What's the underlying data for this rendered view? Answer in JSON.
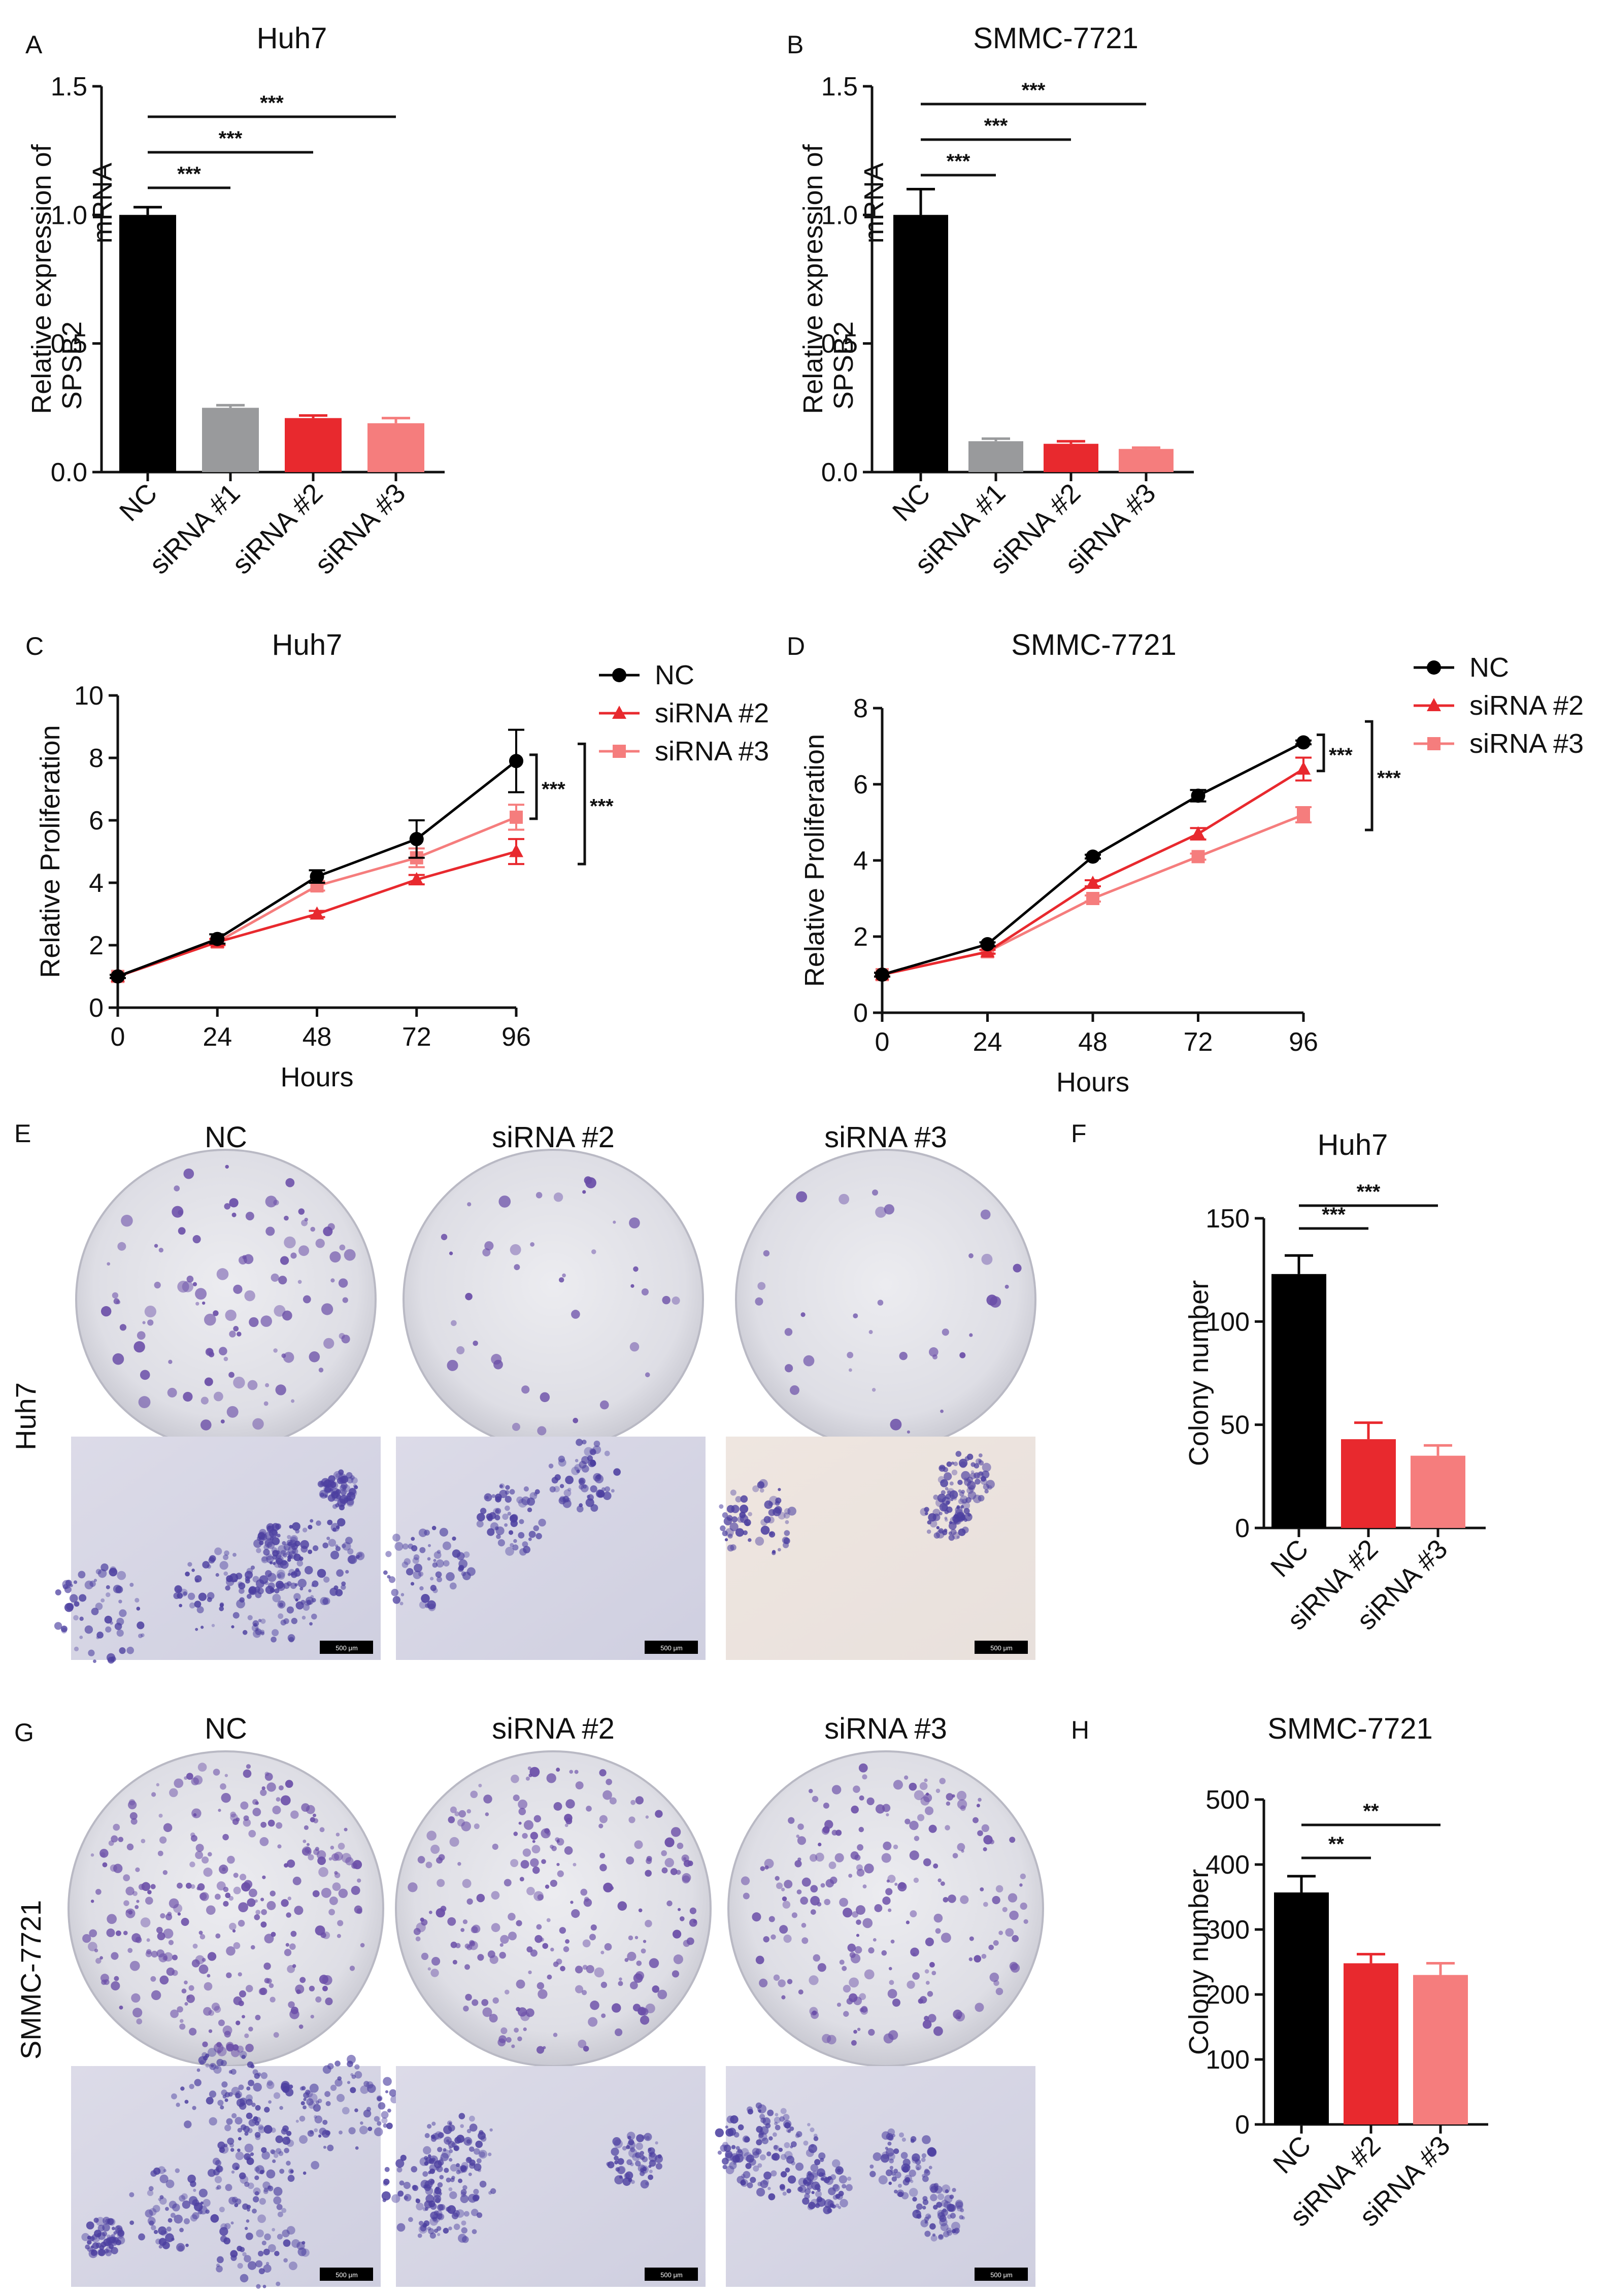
{
  "chart_data": [
    {
      "panel": "A",
      "type": "bar",
      "title": "Huh7",
      "ylabel_lines": [
        "Relative expression of",
        "SPSB2",
        "mRNA"
      ],
      "ylim": [
        0,
        1.5
      ],
      "yticks": [
        "0.0",
        "0.5",
        "1.0",
        "1.5"
      ],
      "categories": [
        "NC",
        "siRNA #1",
        "siRNA #2",
        "siRNA #3"
      ],
      "values": [
        1.0,
        0.25,
        0.21,
        0.19
      ],
      "errors": [
        0.03,
        0.01,
        0.01,
        0.02
      ],
      "colors": [
        "#000000",
        "#999a9c",
        "#e8292e",
        "#f57d7d"
      ],
      "significance": [
        {
          "from": 0,
          "to": 1,
          "label": "***"
        },
        {
          "from": 0,
          "to": 2,
          "label": "***"
        },
        {
          "from": 0,
          "to": 3,
          "label": "***"
        }
      ]
    },
    {
      "panel": "B",
      "type": "bar",
      "title": "SMMC-7721",
      "ylabel_lines": [
        "Relative expression of",
        "SPSB2",
        "mRNA"
      ],
      "ylim": [
        0,
        1.5
      ],
      "yticks": [
        "0.0",
        "0.5",
        "1.0",
        "1.5"
      ],
      "categories": [
        "NC",
        "siRNA #1",
        "siRNA #2",
        "siRNA #3"
      ],
      "values": [
        1.0,
        0.12,
        0.11,
        0.09
      ],
      "errors": [
        0.1,
        0.01,
        0.01,
        0.005
      ],
      "colors": [
        "#000000",
        "#999a9c",
        "#e8292e",
        "#f57d7d"
      ],
      "significance": [
        {
          "from": 0,
          "to": 1,
          "label": "***"
        },
        {
          "from": 0,
          "to": 2,
          "label": "***"
        },
        {
          "from": 0,
          "to": 3,
          "label": "***"
        }
      ]
    },
    {
      "panel": "C",
      "type": "line",
      "title": "Huh7",
      "xlabel": "Hours",
      "ylabel": "Relative Proliferation",
      "x": [
        0,
        24,
        48,
        72,
        96
      ],
      "xticks": [
        "0",
        "24",
        "48",
        "72",
        "96"
      ],
      "ylim": [
        0,
        10
      ],
      "yticks": [
        "0",
        "2",
        "4",
        "6",
        "8",
        "10"
      ],
      "legend_position": "top-right",
      "series": [
        {
          "name": "NC",
          "values": [
            1.0,
            2.2,
            4.2,
            5.4,
            7.9
          ],
          "errors": [
            0.05,
            0.15,
            0.2,
            0.6,
            1.0
          ],
          "color": "#000000",
          "marker": "circle"
        },
        {
          "name": "siRNA #2",
          "values": [
            1.0,
            2.1,
            3.0,
            4.1,
            5.0
          ],
          "errors": [
            0.05,
            0.1,
            0.1,
            0.15,
            0.4
          ],
          "color": "#e8292e",
          "marker": "triangle"
        },
        {
          "name": "siRNA #3",
          "values": [
            1.0,
            2.1,
            3.9,
            4.8,
            6.1
          ],
          "errors": [
            0.05,
            0.1,
            0.15,
            0.3,
            0.4
          ],
          "color": "#f57d7d",
          "marker": "square"
        }
      ],
      "significance": [
        {
          "series_from": 0,
          "series_to": 2,
          "label": "***"
        },
        {
          "series_from": 0,
          "series_to": 1,
          "label": "***"
        }
      ]
    },
    {
      "panel": "D",
      "type": "line",
      "title": "SMMC-7721",
      "xlabel": "Hours",
      "ylabel": "Relative Proliferation",
      "x": [
        0,
        24,
        48,
        72,
        96
      ],
      "xticks": [
        "0",
        "24",
        "48",
        "72",
        "96"
      ],
      "ylim": [
        0,
        8
      ],
      "yticks": [
        "0",
        "2",
        "4",
        "6",
        "8"
      ],
      "legend_position": "top-right",
      "series": [
        {
          "name": "NC",
          "values": [
            1.0,
            1.8,
            4.1,
            5.7,
            7.1
          ],
          "errors": [
            0.05,
            0.05,
            0.05,
            0.15,
            0.05
          ],
          "color": "#000000",
          "marker": "circle"
        },
        {
          "name": "siRNA #2",
          "values": [
            1.0,
            1.6,
            3.4,
            4.7,
            6.4
          ],
          "errors": [
            0.05,
            0.05,
            0.08,
            0.15,
            0.3
          ],
          "color": "#e8292e",
          "marker": "triangle"
        },
        {
          "name": "siRNA #3",
          "values": [
            1.0,
            1.6,
            3.0,
            4.1,
            5.2
          ],
          "errors": [
            0.05,
            0.05,
            0.08,
            0.08,
            0.2
          ],
          "color": "#f57d7d",
          "marker": "square"
        }
      ],
      "significance": [
        {
          "series_from": 0,
          "series_to": 1,
          "label": "***"
        },
        {
          "series_from": 0,
          "series_to": 2,
          "label": "***"
        }
      ]
    },
    {
      "panel": "F",
      "type": "bar",
      "title": "Huh7",
      "ylabel": "Colony number",
      "ylim": [
        0,
        150
      ],
      "yticks": [
        "0",
        "50",
        "100",
        "150"
      ],
      "categories": [
        "NC",
        "siRNA #2",
        "siRNA #3"
      ],
      "values": [
        123,
        43,
        35
      ],
      "errors": [
        9,
        8,
        5
      ],
      "colors": [
        "#000000",
        "#e8292e",
        "#f57d7d"
      ],
      "significance": [
        {
          "from": 0,
          "to": 1,
          "label": "***"
        },
        {
          "from": 0,
          "to": 2,
          "label": "***"
        }
      ]
    },
    {
      "panel": "H",
      "type": "bar",
      "title": "SMMC-7721",
      "ylabel": "Colony number",
      "ylim": [
        0,
        500
      ],
      "yticks": [
        "0",
        "100",
        "200",
        "300",
        "400",
        "500"
      ],
      "categories": [
        "NC",
        "siRNA #2",
        "siRNA #3"
      ],
      "values": [
        357,
        248,
        230
      ],
      "errors": [
        25,
        14,
        18
      ],
      "colors": [
        "#000000",
        "#e8292e",
        "#f57d7d"
      ],
      "significance": [
        {
          "from": 0,
          "to": 1,
          "label": "**"
        },
        {
          "from": 0,
          "to": 2,
          "label": "**"
        }
      ]
    }
  ],
  "photo_panels": {
    "E": {
      "letter": "E",
      "side_label": "Huh7",
      "column_labels": [
        "NC",
        "siRNA #2",
        "siRNA #3"
      ],
      "scale_bar_label": "500 μm",
      "plate_dye_color": "#6b4fa8",
      "micro_dye_color": "#4c3fa0"
    },
    "G": {
      "letter": "G",
      "side_label": "SMMC-7721",
      "column_labels": [
        "NC",
        "siRNA #2",
        "siRNA #3"
      ],
      "scale_bar_label": "500 μm",
      "plate_dye_color": "#6b4fa8",
      "micro_dye_color": "#4c3fa0"
    }
  }
}
